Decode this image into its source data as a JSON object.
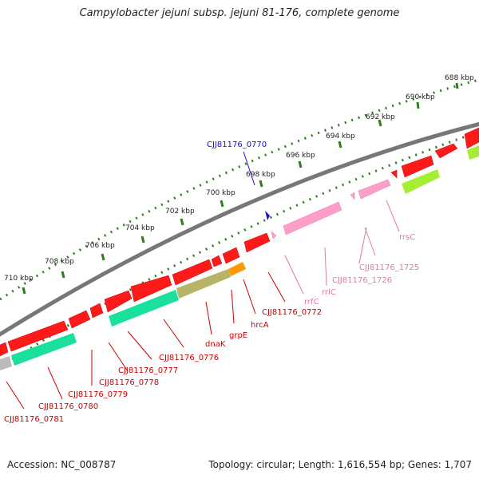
{
  "title": "Campylobacter jejuni subsp. jejuni 81-176, complete genome",
  "accession": "Accession: NC_008787",
  "summary": "Topology: circular; Length: 1,616,554 bp; Genes: 1,707",
  "colors": {
    "backbone": "#808080",
    "tick_ring": "#2e7d1e",
    "cds": "#ff1a1a",
    "rrna": "#ff9ec9",
    "rrna_label": "#e07aa8",
    "trna_blue": "#1010dd",
    "teal": "#19e09a",
    "olive": "#b7b46a",
    "orange": "#ff9900",
    "lime": "#a6ee33",
    "grey_feature": "#bbbbbb",
    "label_red": "#cc0000"
  },
  "kbp_ticks": [
    "688 kbp",
    "690 kbp",
    "692 kbp",
    "694 kbp",
    "696 kbp",
    "698 kbp",
    "700 kbp",
    "702 kbp",
    "704 kbp",
    "706 kbp",
    "708 kbp",
    "710 kbp"
  ],
  "gene_labels": [
    {
      "text": "CJJ81176_0770",
      "color": "blue"
    },
    {
      "text": "rrsC",
      "color": "pink"
    },
    {
      "text": "CJJ81176_1725",
      "color": "pink"
    },
    {
      "text": "CJJ81176_1726",
      "color": "pink"
    },
    {
      "text": "rrlC",
      "color": "pink"
    },
    {
      "text": "rrfC",
      "color": "pink"
    },
    {
      "text": "CJJ81176_0772",
      "color": "red"
    },
    {
      "text": "hrcA",
      "color": "red"
    },
    {
      "text": "grpE",
      "color": "red"
    },
    {
      "text": "dnaK",
      "color": "red"
    },
    {
      "text": "CJJ81176_0776",
      "color": "red"
    },
    {
      "text": "CJJ81176_0777",
      "color": "red"
    },
    {
      "text": "CJJ81176_0778",
      "color": "red"
    },
    {
      "text": "CJJ81176_0779",
      "color": "red"
    },
    {
      "text": "CJJ81176_0780",
      "color": "red"
    },
    {
      "text": "CJJ81176_0781",
      "color": "red"
    }
  ]
}
